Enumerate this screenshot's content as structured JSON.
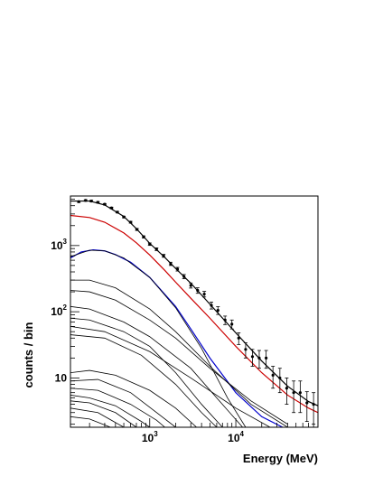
{
  "chart_data": {
    "type": "line",
    "xlabel": "Energy (MeV)",
    "ylabel": "counts / bin",
    "x_scale": "log",
    "y_scale": "log",
    "xlim": [
      120,
      90000
    ],
    "ylim": [
      1.8,
      5600
    ],
    "x_major_ticks": [
      {
        "value": 1000,
        "base": "10",
        "exp": "3"
      },
      {
        "value": 10000,
        "base": "10",
        "exp": "4"
      }
    ],
    "y_major_ticks": [
      {
        "value": 10,
        "base": "10",
        "exp": ""
      },
      {
        "value": 100,
        "base": "10",
        "exp": "2"
      },
      {
        "value": 1000,
        "base": "10",
        "exp": "3"
      }
    ],
    "grid": false,
    "legend": "none",
    "data_points": [
      {
        "x": 150,
        "y": 4600,
        "err": 130
      },
      {
        "x": 180,
        "y": 4800,
        "err": 130
      },
      {
        "x": 210,
        "y": 4700,
        "err": 130
      },
      {
        "x": 250,
        "y": 4500,
        "err": 120
      },
      {
        "x": 300,
        "y": 4200,
        "err": 110
      },
      {
        "x": 360,
        "y": 3700,
        "err": 100
      },
      {
        "x": 420,
        "y": 3200,
        "err": 90
      },
      {
        "x": 500,
        "y": 2700,
        "err": 80
      },
      {
        "x": 600,
        "y": 2250,
        "err": 70
      },
      {
        "x": 710,
        "y": 1750,
        "err": 60
      },
      {
        "x": 850,
        "y": 1350,
        "err": 50
      },
      {
        "x": 1000,
        "y": 1050,
        "err": 45
      },
      {
        "x": 1200,
        "y": 880,
        "err": 40
      },
      {
        "x": 1450,
        "y": 700,
        "err": 35
      },
      {
        "x": 1750,
        "y": 530,
        "err": 30
      },
      {
        "x": 2100,
        "y": 440,
        "err": 28
      },
      {
        "x": 2500,
        "y": 340,
        "err": 25
      },
      {
        "x": 3000,
        "y": 250,
        "err": 22
      },
      {
        "x": 3600,
        "y": 210,
        "err": 20
      },
      {
        "x": 4300,
        "y": 185,
        "err": 18
      },
      {
        "x": 5200,
        "y": 125,
        "err": 15
      },
      {
        "x": 6200,
        "y": 105,
        "err": 14
      },
      {
        "x": 7500,
        "y": 75,
        "err": 11
      },
      {
        "x": 9000,
        "y": 65,
        "err": 10
      },
      {
        "x": 10800,
        "y": 40,
        "err": 8
      },
      {
        "x": 13000,
        "y": 27,
        "err": 7
      },
      {
        "x": 15600,
        "y": 21,
        "err": 6
      },
      {
        "x": 18700,
        "y": 20,
        "err": 6
      },
      {
        "x": 22500,
        "y": 20,
        "err": 6
      },
      {
        "x": 27000,
        "y": 11,
        "err": 4
      },
      {
        "x": 32500,
        "y": 10,
        "err": 4
      },
      {
        "x": 39000,
        "y": 7,
        "err": 3
      },
      {
        "x": 47000,
        "y": 6,
        "err": 3
      },
      {
        "x": 56000,
        "y": 6,
        "err": 3
      },
      {
        "x": 67000,
        "y": 4.2,
        "err": 2
      },
      {
        "x": 80000,
        "y": 4.0,
        "err": 2
      }
    ],
    "series": [
      {
        "color": "#000000",
        "width": 1.2,
        "points": [
          [
            120,
            4700
          ],
          [
            200,
            4700
          ],
          [
            300,
            4100
          ],
          [
            500,
            2750
          ],
          [
            700,
            1800
          ],
          [
            1000,
            1080
          ],
          [
            1500,
            660
          ],
          [
            2000,
            450
          ],
          [
            3000,
            270
          ],
          [
            5000,
            130
          ],
          [
            10000,
            48
          ],
          [
            20000,
            18
          ],
          [
            40000,
            7.5
          ],
          [
            70000,
            4.4
          ],
          [
            90000,
            3.8
          ]
        ]
      },
      {
        "color": "#cc0000",
        "width": 1.2,
        "points": [
          [
            120,
            2850
          ],
          [
            200,
            2650
          ],
          [
            300,
            2250
          ],
          [
            500,
            1550
          ],
          [
            700,
            1100
          ],
          [
            1000,
            720
          ],
          [
            1500,
            420
          ],
          [
            2000,
            280
          ],
          [
            3000,
            160
          ],
          [
            5000,
            80
          ],
          [
            10000,
            30
          ],
          [
            20000,
            12
          ],
          [
            40000,
            5.5
          ],
          [
            70000,
            3.5
          ],
          [
            90000,
            3
          ]
        ]
      },
      {
        "color": "#0000cc",
        "width": 1.2,
        "points": [
          [
            120,
            650
          ],
          [
            160,
            800
          ],
          [
            220,
            860
          ],
          [
            300,
            830
          ],
          [
            400,
            730
          ],
          [
            600,
            560
          ],
          [
            1000,
            330
          ],
          [
            2000,
            120
          ],
          [
            3000,
            55
          ],
          [
            5000,
            20
          ],
          [
            10000,
            6
          ],
          [
            20000,
            2.6
          ],
          [
            35000,
            1.8
          ]
        ]
      },
      {
        "color": "#000000",
        "width": 0.8,
        "points": [
          [
            120,
            680
          ],
          [
            200,
            850
          ],
          [
            300,
            830
          ],
          [
            500,
            650
          ],
          [
            1000,
            330
          ],
          [
            2000,
            115
          ],
          [
            4000,
            28
          ],
          [
            8000,
            5
          ],
          [
            13000,
            1.8
          ]
        ]
      },
      {
        "color": "#000000",
        "width": 0.8,
        "points": [
          [
            120,
            300
          ],
          [
            200,
            300
          ],
          [
            400,
            230
          ],
          [
            1000,
            110
          ],
          [
            2000,
            50
          ],
          [
            5000,
            15
          ],
          [
            15000,
            4
          ],
          [
            40000,
            1.8
          ]
        ]
      },
      {
        "color": "#000000",
        "width": 0.8,
        "points": [
          [
            120,
            210
          ],
          [
            200,
            200
          ],
          [
            400,
            150
          ],
          [
            1000,
            75
          ],
          [
            2000,
            40
          ],
          [
            5000,
            14
          ],
          [
            15000,
            4.5
          ],
          [
            40000,
            2
          ]
        ]
      },
      {
        "color": "#000000",
        "width": 0.8,
        "points": [
          [
            120,
            120
          ],
          [
            200,
            110
          ],
          [
            500,
            70
          ],
          [
            1000,
            42
          ],
          [
            3000,
            14
          ],
          [
            6000,
            5
          ],
          [
            12000,
            1.8
          ]
        ]
      },
      {
        "color": "#000000",
        "width": 0.8,
        "points": [
          [
            120,
            80
          ],
          [
            200,
            75
          ],
          [
            500,
            50
          ],
          [
            1000,
            30
          ],
          [
            2000,
            12
          ],
          [
            4000,
            4
          ],
          [
            7000,
            1.8
          ]
        ]
      },
      {
        "color": "#000000",
        "width": 0.8,
        "points": [
          [
            120,
            60
          ],
          [
            300,
            50
          ],
          [
            1000,
            25
          ],
          [
            3000,
            10
          ],
          [
            10000,
            3.5
          ],
          [
            25000,
            1.8
          ]
        ]
      },
      {
        "color": "#000000",
        "width": 0.8,
        "points": [
          [
            120,
            45
          ],
          [
            300,
            40
          ],
          [
            800,
            22
          ],
          [
            2000,
            8
          ],
          [
            4000,
            3
          ],
          [
            6000,
            1.8
          ]
        ]
      },
      {
        "color": "#000000",
        "width": 0.8,
        "points": [
          [
            120,
            12
          ],
          [
            200,
            13
          ],
          [
            400,
            11
          ],
          [
            1000,
            6.5
          ],
          [
            2000,
            3.5
          ],
          [
            3500,
            1.8
          ]
        ]
      },
      {
        "color": "#000000",
        "width": 0.8,
        "points": [
          [
            120,
            9
          ],
          [
            250,
            9.5
          ],
          [
            600,
            6
          ],
          [
            1200,
            3
          ],
          [
            2000,
            1.8
          ]
        ]
      },
      {
        "color": "#000000",
        "width": 0.8,
        "points": [
          [
            120,
            7
          ],
          [
            250,
            6.5
          ],
          [
            600,
            4
          ],
          [
            1200,
            2.3
          ],
          [
            1500,
            1.8
          ]
        ]
      },
      {
        "color": "#000000",
        "width": 0.8,
        "points": [
          [
            120,
            5.5
          ],
          [
            200,
            5
          ],
          [
            400,
            3.8
          ],
          [
            800,
            2.2
          ],
          [
            1000,
            1.8
          ]
        ]
      },
      {
        "color": "#000000",
        "width": 0.8,
        "points": [
          [
            120,
            4.5
          ],
          [
            200,
            4.2
          ],
          [
            400,
            3
          ],
          [
            700,
            1.8
          ]
        ]
      },
      {
        "color": "#000000",
        "width": 0.8,
        "points": [
          [
            120,
            3.5
          ],
          [
            250,
            3
          ],
          [
            500,
            1.8
          ]
        ]
      },
      {
        "color": "#000000",
        "width": 0.8,
        "points": [
          [
            120,
            2.6
          ],
          [
            200,
            2.4
          ],
          [
            350,
            1.8
          ]
        ]
      }
    ]
  }
}
